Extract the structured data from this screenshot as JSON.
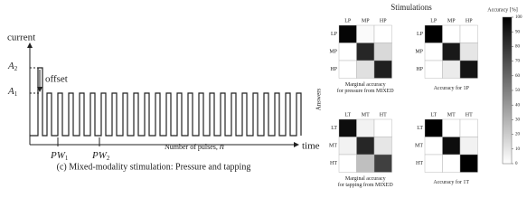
{
  "waveform": {
    "y_label": "current",
    "levels": [
      {
        "base": "A",
        "sub": "2"
      },
      {
        "base": "A",
        "sub": "1"
      }
    ],
    "offset": "offset",
    "pulse_widths": [
      {
        "base": "PW",
        "sub": "1"
      },
      {
        "base": "PW",
        "sub": "2"
      }
    ],
    "n_label": "Number of pulses, ",
    "n_symbol": "n",
    "x_label": "time",
    "caption": "(c) Mixed-modality stimulation: Pressure and tapping"
  },
  "heatmaps": {
    "title": "Stimulations",
    "y_label": "Answers",
    "colorbar": {
      "label": "Accuracy [%]",
      "lim": [
        0,
        100
      ],
      "ticks": [
        0,
        10,
        20,
        30,
        40,
        50,
        60,
        70,
        80,
        90,
        100
      ]
    },
    "matrices": [
      {
        "caption": [
          "Marginal accuracy",
          "for pressure from MIXED"
        ],
        "labels": [
          "LP",
          "MP",
          "HP"
        ],
        "values": [
          [
            98,
            2,
            0
          ],
          [
            0,
            85,
            15
          ],
          [
            0,
            12,
            88
          ]
        ]
      },
      {
        "caption": [
          "Accuracy for 1P"
        ],
        "labels": [
          "LP",
          "MP",
          "HP"
        ],
        "values": [
          [
            100,
            0,
            0
          ],
          [
            0,
            90,
            10
          ],
          [
            0,
            8,
            92
          ]
        ]
      },
      {
        "caption": [
          "Marginal accuracy",
          "for tapping from MIXED"
        ],
        "labels": [
          "LT",
          "MT",
          "HT"
        ],
        "values": [
          [
            95,
            5,
            0
          ],
          [
            5,
            85,
            10
          ],
          [
            0,
            25,
            75
          ]
        ]
      },
      {
        "caption": [
          "Accuracy for 1T"
        ],
        "labels": [
          "LT",
          "MT",
          "HT"
        ],
        "values": [
          [
            100,
            0,
            0
          ],
          [
            0,
            95,
            5
          ],
          [
            0,
            0,
            100
          ]
        ]
      }
    ]
  }
}
